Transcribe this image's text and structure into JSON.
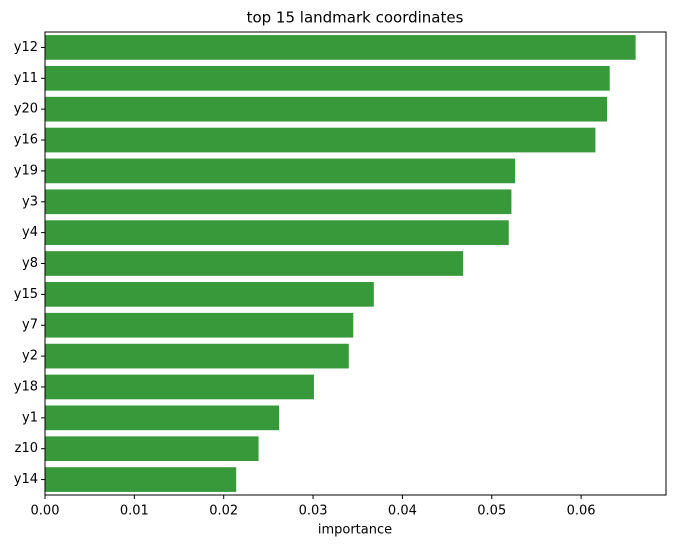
{
  "chart_data": {
    "type": "barh",
    "title": "top 15 landmark coordinates",
    "xlabel": "importance",
    "categories": [
      "y12",
      "y11",
      "y20",
      "y16",
      "y19",
      "y3",
      "y4",
      "y8",
      "y15",
      "y7",
      "y2",
      "y18",
      "y1",
      "z10",
      "y14"
    ],
    "values": [
      0.0661,
      0.0632,
      0.0629,
      0.0616,
      0.0526,
      0.0522,
      0.0519,
      0.0468,
      0.0368,
      0.0345,
      0.034,
      0.0301,
      0.0262,
      0.0239,
      0.0214
    ],
    "color": "#38993a",
    "xlim": [
      0,
      0.0695
    ],
    "xticks": [
      {
        "value": 0,
        "label": "0.00"
      },
      0.01,
      0.02,
      0.03,
      0.04,
      0.05,
      0.06
    ]
  }
}
